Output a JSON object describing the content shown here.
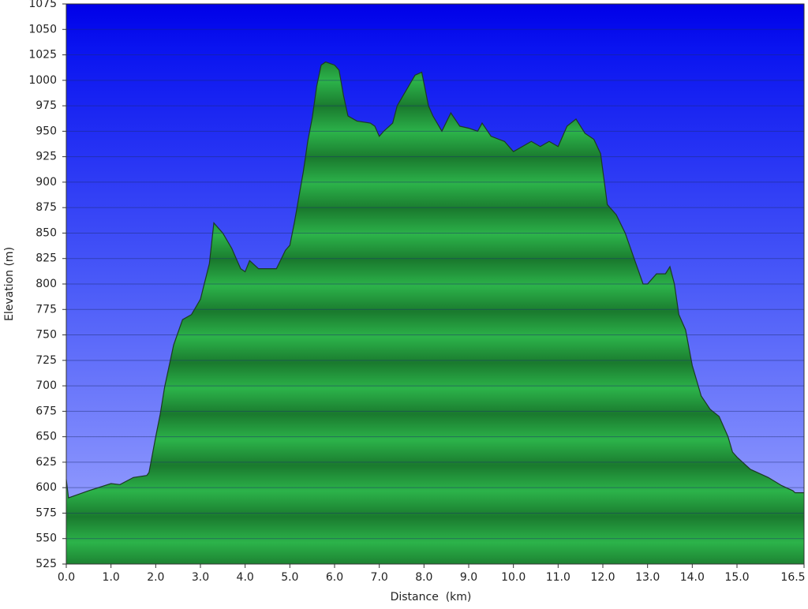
{
  "chart_data": {
    "type": "area",
    "x_label": "Distance  (km)",
    "y_label": "Elevation (m)",
    "color": "#1f9e3c",
    "x": [
      0.0,
      0.05,
      0.5,
      1.0,
      1.2,
      1.5,
      1.8,
      1.85,
      2.0,
      2.1,
      2.2,
      2.4,
      2.6,
      2.8,
      3.0,
      3.2,
      3.3,
      3.5,
      3.7,
      3.9,
      4.0,
      4.1,
      4.3,
      4.6,
      4.7,
      4.9,
      5.0,
      5.1,
      5.3,
      5.4,
      5.5,
      5.6,
      5.7,
      5.8,
      6.0,
      6.1,
      6.2,
      6.3,
      6.5,
      6.8,
      6.9,
      7.0,
      7.1,
      7.3,
      7.4,
      7.6,
      7.8,
      7.95,
      8.1,
      8.2,
      8.4,
      8.6,
      8.8,
      9.0,
      9.2,
      9.3,
      9.5,
      9.8,
      10.0,
      10.2,
      10.4,
      10.6,
      10.8,
      11.0,
      11.2,
      11.4,
      11.6,
      11.8,
      11.95,
      12.1,
      12.3,
      12.5,
      12.7,
      12.9,
      13.0,
      13.2,
      13.4,
      13.5,
      13.6,
      13.7,
      13.85,
      14.0,
      14.2,
      14.4,
      14.6,
      14.8,
      14.9,
      15.0,
      15.3,
      15.7,
      16.0,
      16.25,
      16.3,
      16.5
    ],
    "values": [
      608,
      590,
      597,
      604,
      603,
      610,
      612,
      615,
      650,
      672,
      699,
      740,
      765,
      770,
      785,
      820,
      860,
      850,
      835,
      815,
      812,
      823,
      815,
      815,
      815,
      833,
      838,
      860,
      910,
      940,
      963,
      994,
      1015,
      1018,
      1015,
      1010,
      985,
      965,
      960,
      958,
      955,
      945,
      950,
      958,
      975,
      990,
      1005,
      1008,
      975,
      965,
      950,
      968,
      955,
      953,
      950,
      958,
      945,
      940,
      930,
      935,
      940,
      935,
      940,
      935,
      955,
      962,
      948,
      942,
      928,
      878,
      868,
      850,
      825,
      800,
      800,
      810,
      810,
      817,
      800,
      770,
      755,
      720,
      690,
      677,
      670,
      650,
      635,
      630,
      618,
      610,
      602,
      597,
      595,
      595
    ],
    "xlim": [
      0,
      16.5
    ],
    "ylim": [
      525,
      1075
    ],
    "xticks": [
      {
        "value": 0,
        "label": "0.0"
      },
      {
        "value": 1,
        "label": "1.0"
      },
      {
        "value": 2,
        "label": "2.0"
      },
      {
        "value": 3,
        "label": "3.0"
      },
      {
        "value": 4,
        "label": "4.0"
      },
      {
        "value": 5,
        "label": "5.0"
      },
      {
        "value": 6,
        "label": "6.0"
      },
      {
        "value": 7,
        "label": "7.0"
      },
      {
        "value": 8,
        "label": "8.0"
      },
      {
        "value": 9,
        "label": "9.0"
      },
      {
        "value": 10,
        "label": "10.0"
      },
      {
        "value": 11,
        "label": "11.0"
      },
      {
        "value": 12,
        "label": "12.0"
      },
      {
        "value": 13,
        "label": "13.0"
      },
      {
        "value": 14,
        "label": "14.0"
      },
      {
        "value": 15,
        "label": "15.0"
      },
      {
        "value": 16.5,
        "label": "16.5"
      }
    ],
    "yticks": [
      525,
      550,
      575,
      600,
      625,
      650,
      675,
      700,
      725,
      750,
      775,
      800,
      825,
      850,
      875,
      900,
      925,
      950,
      975,
      1000,
      1025,
      1050,
      1075
    ],
    "grid": true
  }
}
